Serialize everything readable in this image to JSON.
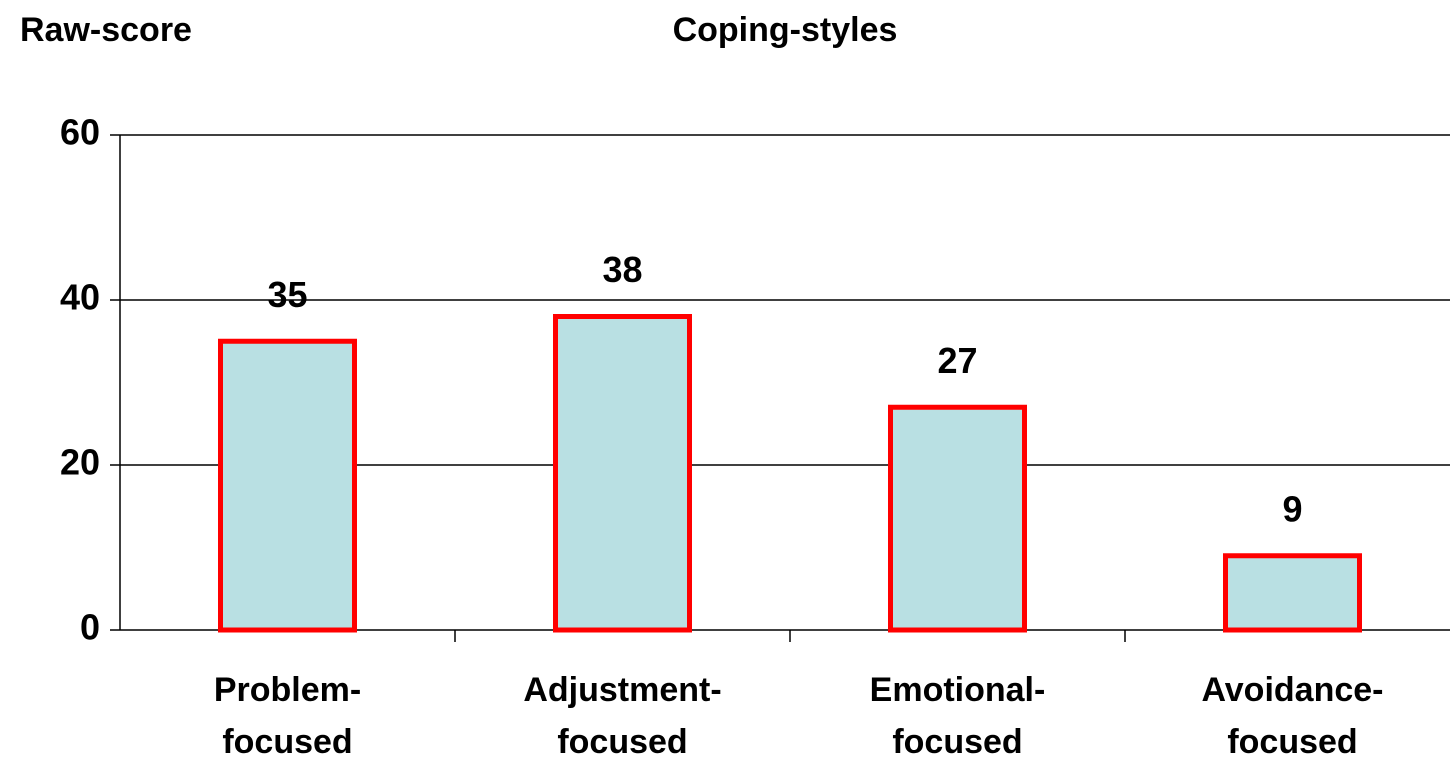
{
  "chart_data": {
    "type": "bar",
    "title": "Coping-styles",
    "y_label": "Raw-score",
    "categories": [
      "Problem-focused",
      "Adjustment-focused",
      "Emotional-focused",
      "Avoidance-focused"
    ],
    "values": [
      35,
      38,
      27,
      9
    ],
    "color": "#b9e0e3",
    "edge_color": "#ff0000",
    "ylim": [
      0,
      60
    ],
    "yticks": [
      0,
      20,
      40,
      60
    ],
    "grid": true
  }
}
